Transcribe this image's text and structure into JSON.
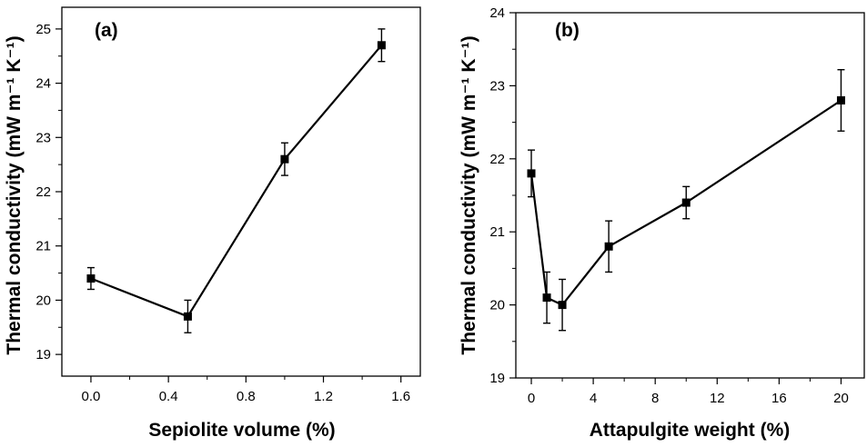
{
  "chart_data": [
    {
      "type": "line",
      "panel_label": "(a)",
      "xlabel": "Sepiolite volume (%)",
      "ylabel": "Thermal conductivity (mW m⁻¹ K⁻¹)",
      "xlim": [
        -0.15,
        1.7
      ],
      "ylim": [
        18.6,
        25.4
      ],
      "xticks": [
        0.0,
        0.4,
        0.8,
        1.2,
        1.6
      ],
      "xtick_labels": [
        "0.0",
        "0.4",
        "0.8",
        "1.2",
        "1.6"
      ],
      "yticks": [
        19,
        20,
        21,
        22,
        23,
        24,
        25
      ],
      "ytick_labels": [
        "19",
        "20",
        "21",
        "22",
        "23",
        "24",
        "25"
      ],
      "grid": false,
      "series": [
        {
          "x": [
            0.0,
            0.5,
            1.0,
            1.5
          ],
          "y": [
            20.4,
            19.7,
            22.6,
            24.7
          ],
          "error": [
            0.2,
            0.3,
            0.3,
            0.3
          ]
        }
      ]
    },
    {
      "type": "line",
      "panel_label": "(b)",
      "xlabel": "Attapulgite weight (%)",
      "ylabel": "Thermal conductivity (mW m⁻¹ K⁻¹)",
      "xlim": [
        -1,
        21.5
      ],
      "ylim": [
        19,
        24
      ],
      "xticks": [
        0,
        4,
        8,
        12,
        16,
        20
      ],
      "xtick_labels": [
        "0",
        "4",
        "8",
        "12",
        "16",
        "20"
      ],
      "yticks": [
        19,
        20,
        21,
        22,
        23,
        24
      ],
      "ytick_labels": [
        "19",
        "20",
        "21",
        "22",
        "23",
        "24"
      ],
      "grid": false,
      "series": [
        {
          "x": [
            0,
            1,
            2,
            5,
            10,
            20
          ],
          "y": [
            21.8,
            20.1,
            20.0,
            20.8,
            21.4,
            22.8
          ],
          "error": [
            0.32,
            0.35,
            0.35,
            0.35,
            0.22,
            0.42
          ]
        }
      ]
    }
  ]
}
